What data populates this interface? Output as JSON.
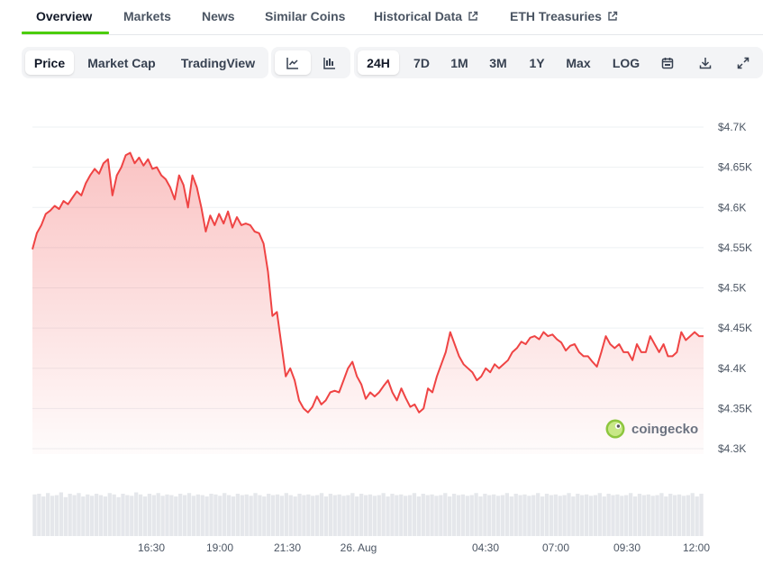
{
  "tabs": [
    {
      "label": "Overview",
      "active": true
    },
    {
      "label": "Markets"
    },
    {
      "label": "News"
    },
    {
      "label": "Similar Coins"
    },
    {
      "label": "Historical Data",
      "external": true
    },
    {
      "label": "ETH Treasuries",
      "external": true
    }
  ],
  "chart_type_buttons": [
    {
      "label": "Price",
      "selected": true
    },
    {
      "label": "Market Cap"
    },
    {
      "label": "TradingView"
    }
  ],
  "style_buttons": [
    {
      "icon": "line-chart-icon",
      "selected": true
    },
    {
      "icon": "candlestick-chart-icon"
    }
  ],
  "range_buttons": [
    {
      "label": "24H",
      "selected": true
    },
    {
      "label": "7D"
    },
    {
      "label": "1M"
    },
    {
      "label": "3M"
    },
    {
      "label": "1Y"
    },
    {
      "label": "Max"
    },
    {
      "label": "LOG"
    }
  ],
  "tool_icons": [
    "calendar-icon",
    "download-icon",
    "fullscreen-icon"
  ],
  "watermark": "coingecko",
  "colors": {
    "accent": "#4bcc00",
    "line": "#ef4444",
    "volume": "#e5e7eb"
  },
  "chart_data": {
    "type": "area",
    "ylim": [
      4270,
      4740
    ],
    "y_ticks": [
      {
        "value": 4300,
        "label": "$4.3K"
      },
      {
        "value": 4350,
        "label": "$4.35K"
      },
      {
        "value": 4400,
        "label": "$4.4K"
      },
      {
        "value": 4450,
        "label": "$4.45K"
      },
      {
        "value": 4500,
        "label": "$4.5K"
      },
      {
        "value": 4550,
        "label": "$4.55K"
      },
      {
        "value": 4600,
        "label": "$4.6K"
      },
      {
        "value": 4650,
        "label": "$4.65K"
      },
      {
        "value": 4700,
        "label": "$4.7K"
      }
    ],
    "x_ticks": [
      "16:30",
      "19:00",
      "21:30",
      "26. Aug",
      "04:30",
      "07:00",
      "09:30",
      "12:00"
    ],
    "grid": true,
    "legend": "none",
    "series": [
      {
        "values": [
          4548,
          4568,
          4578,
          4592,
          4596,
          4602,
          4598,
          4608,
          4604,
          4612,
          4620,
          4615,
          4630,
          4640,
          4648,
          4642,
          4655,
          4660,
          4615,
          4640,
          4650,
          4665,
          4668,
          4655,
          4662,
          4652,
          4660,
          4648,
          4650,
          4640,
          4635,
          4625,
          4610,
          4640,
          4628,
          4600,
          4640,
          4625,
          4600,
          4570,
          4590,
          4578,
          4592,
          4580,
          4595,
          4575,
          4588,
          4578,
          4580,
          4578,
          4570,
          4568,
          4555,
          4520,
          4465,
          4470,
          4430,
          4390,
          4400,
          4385,
          4360,
          4350,
          4345,
          4352,
          4365,
          4355,
          4360,
          4370,
          4372,
          4370,
          4385,
          4400,
          4408,
          4390,
          4380,
          4362,
          4370,
          4365,
          4370,
          4378,
          4385,
          4370,
          4360,
          4375,
          4363,
          4352,
          4355,
          4345,
          4350,
          4375,
          4370,
          4390,
          4405,
          4420,
          4445,
          4430,
          4415,
          4405,
          4400,
          4395,
          4385,
          4390,
          4400,
          4395,
          4405,
          4400,
          4405,
          4410,
          4420,
          4425,
          4433,
          4430,
          4438,
          4440,
          4436,
          4445,
          4440,
          4442,
          4436,
          4432,
          4422,
          4428,
          4430,
          4420,
          4415,
          4415,
          4408,
          4402,
          4420,
          4440,
          4430,
          4425,
          4430,
          4420,
          4420,
          4410,
          4430,
          4420,
          4420,
          4440,
          4430,
          4420,
          4430,
          4415,
          4415,
          4420,
          4445,
          4435,
          4440,
          4445,
          4440,
          4440
        ]
      }
    ],
    "volume": [
      0.61,
      0.62,
      0.58,
      0.63,
      0.59,
      0.6,
      0.64,
      0.57,
      0.62,
      0.6,
      0.63,
      0.58,
      0.61,
      0.59,
      0.62,
      0.6,
      0.58,
      0.63,
      0.61,
      0.57,
      0.62,
      0.6,
      0.59,
      0.64,
      0.61,
      0.58,
      0.62,
      0.6,
      0.63,
      0.59,
      0.61,
      0.6,
      0.58,
      0.62,
      0.6,
      0.63,
      0.59,
      0.61,
      0.6,
      0.58,
      0.62,
      0.61,
      0.59,
      0.63,
      0.6,
      0.58,
      0.62,
      0.6,
      0.61,
      0.59,
      0.63,
      0.6,
      0.58,
      0.62,
      0.6,
      0.61,
      0.59,
      0.63,
      0.6,
      0.58,
      0.62,
      0.6,
      0.61,
      0.59,
      0.6,
      0.63,
      0.58,
      0.62,
      0.6,
      0.61,
      0.59,
      0.6,
      0.63,
      0.58,
      0.62,
      0.6,
      0.61,
      0.59,
      0.6,
      0.63,
      0.58,
      0.62,
      0.6,
      0.61,
      0.59,
      0.6,
      0.63,
      0.58,
      0.62,
      0.6,
      0.61,
      0.59,
      0.6,
      0.63,
      0.58,
      0.62,
      0.6,
      0.61,
      0.59,
      0.6,
      0.63,
      0.58,
      0.62,
      0.6,
      0.61,
      0.59,
      0.6,
      0.63,
      0.58,
      0.62,
      0.6,
      0.61,
      0.59,
      0.6,
      0.63,
      0.58,
      0.62,
      0.6,
      0.61,
      0.59,
      0.6,
      0.63,
      0.58,
      0.62,
      0.6,
      0.61,
      0.59,
      0.6,
      0.63,
      0.58,
      0.62,
      0.6,
      0.61,
      0.59,
      0.6,
      0.63,
      0.58,
      0.62,
      0.6,
      0.61,
      0.59,
      0.6,
      0.63,
      0.58,
      0.62,
      0.6,
      0.61,
      0.59,
      0.6,
      0.63,
      0.58,
      0.62
    ]
  }
}
